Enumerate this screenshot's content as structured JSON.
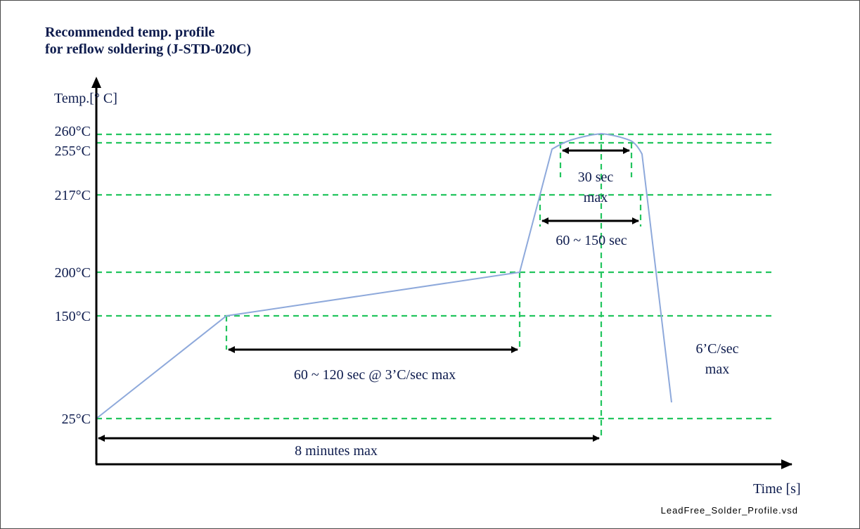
{
  "title": {
    "line1": "Recommended temp. profile",
    "line2": "for reflow soldering (J-STD-020C)"
  },
  "file_label": "LeadFree_Solder_Profile.vsd",
  "colors": {
    "guide": "#22c55e",
    "profile": "#8ea9db",
    "axis": "#000000",
    "text": "#0d1b4d"
  },
  "chart_data": {
    "type": "line",
    "ylabel": "Temp.[° C]",
    "xlabel": "Time [s]",
    "y_ticks": [
      {
        "value": 260,
        "label": "260°C"
      },
      {
        "value": 255,
        "label": "255°C"
      },
      {
        "value": 217,
        "label": "217°C"
      },
      {
        "value": 200,
        "label": "200°C"
      },
      {
        "value": 150,
        "label": "150°C"
      },
      {
        "value": 25,
        "label": "25°C"
      }
    ],
    "annotations": [
      {
        "name": "annotation-30sec",
        "lines": [
          "30 sec",
          "max"
        ]
      },
      {
        "name": "annotation-60-150sec",
        "lines": [
          "60 ~ 150 sec"
        ]
      },
      {
        "name": "annotation-60-120sec",
        "lines": [
          "60 ~ 120 sec @ 3’C/sec max"
        ]
      },
      {
        "name": "annotation-cooling-rate",
        "lines": [
          "6’C/sec",
          "max"
        ]
      },
      {
        "name": "annotation-8min",
        "lines": [
          "8 minutes max"
        ]
      }
    ]
  }
}
